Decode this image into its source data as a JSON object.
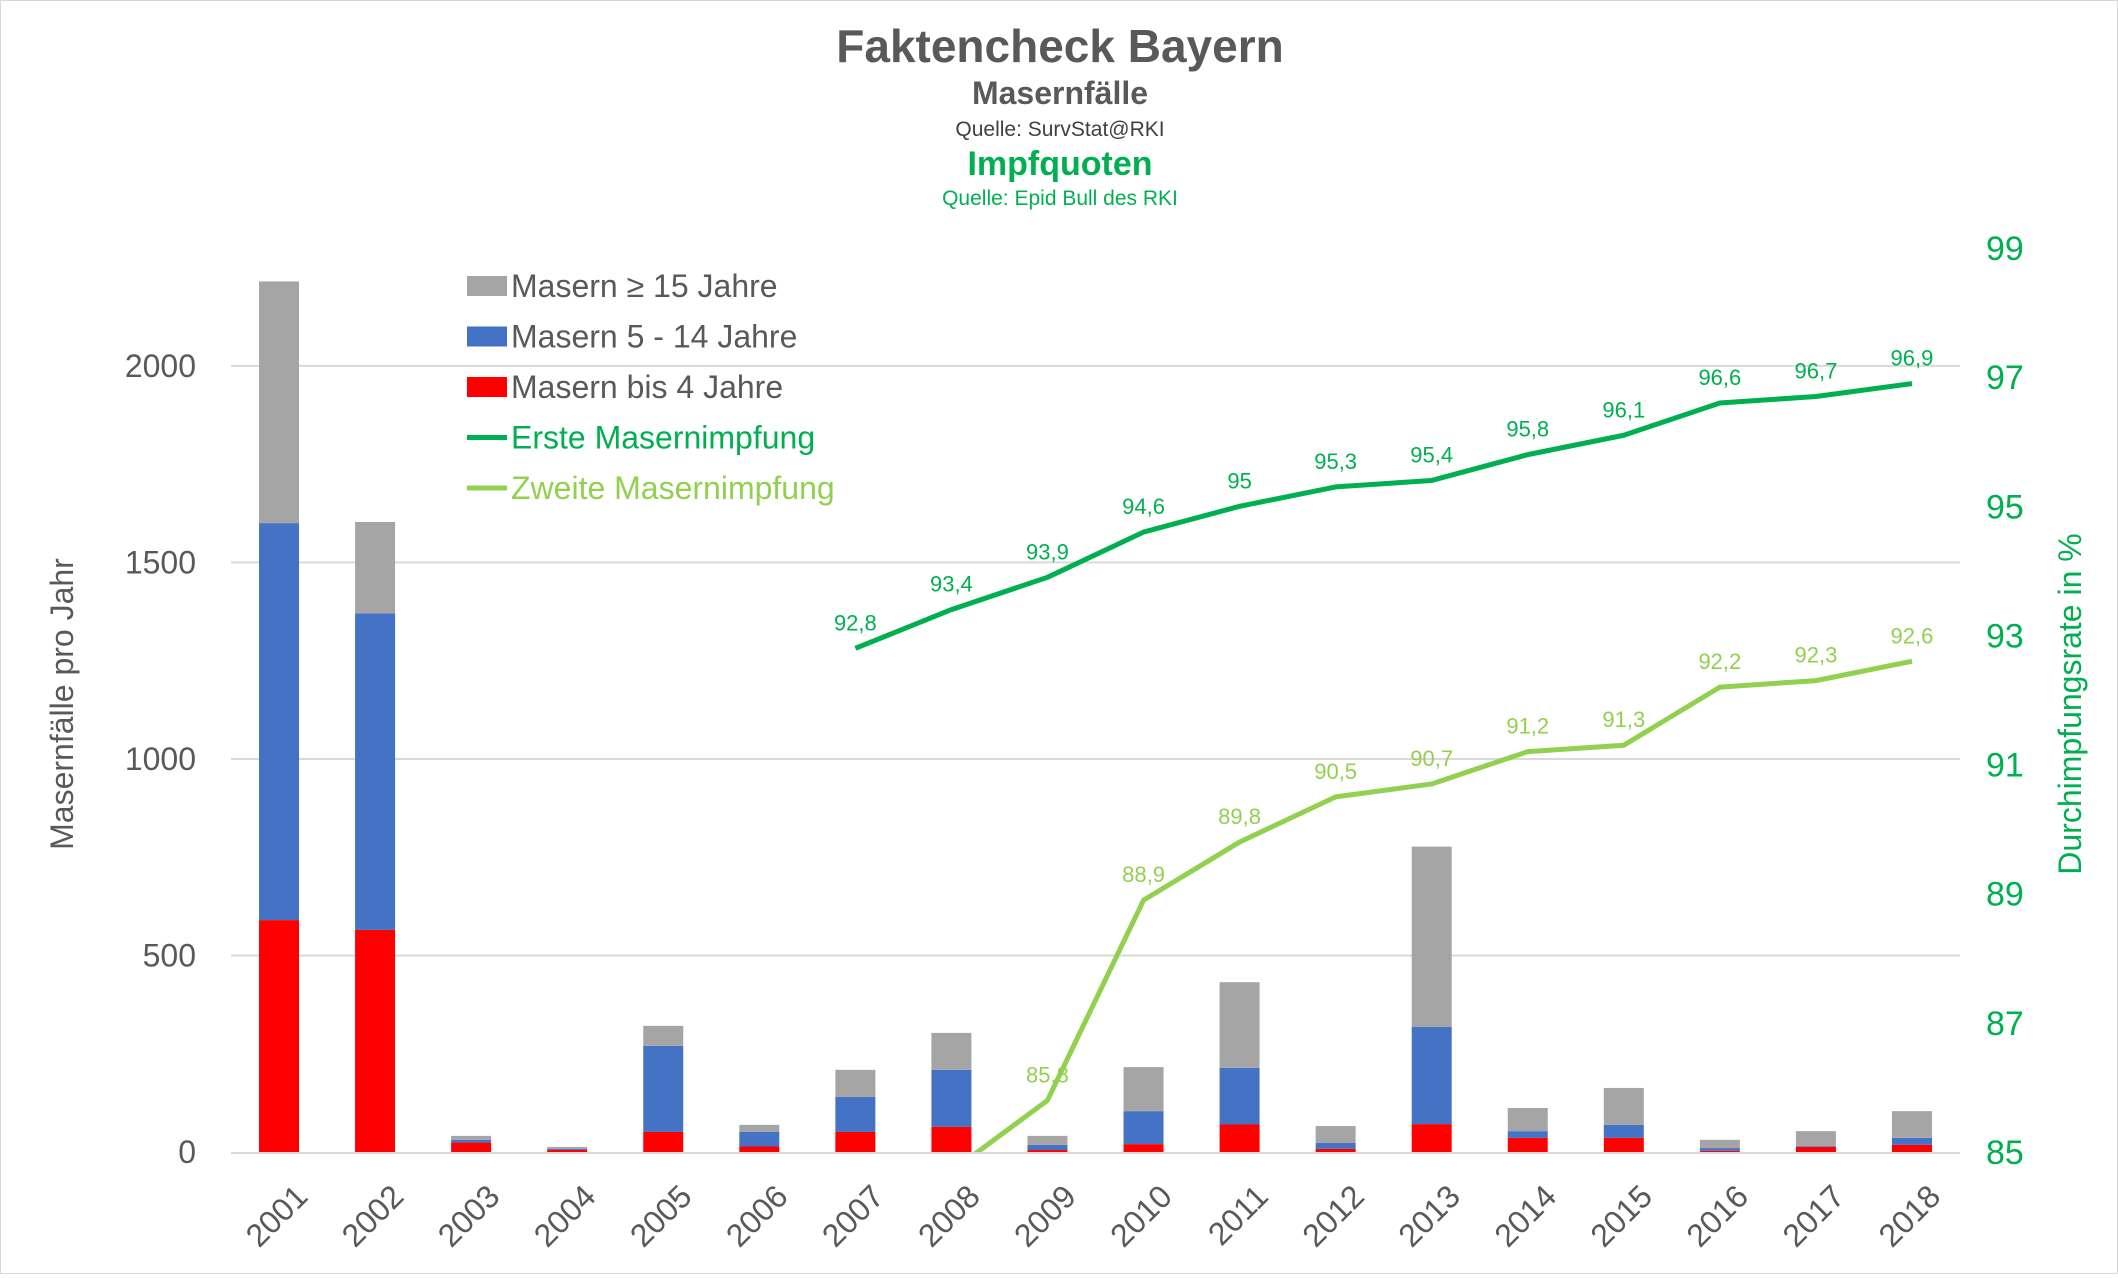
{
  "chart_data": {
    "type": "bar",
    "title": "Faktencheck Bayern",
    "subtitle1": "Masernfälle",
    "source1": "Quelle: SurvStat@RKI",
    "subtitle2": "Impfquoten",
    "source2": "Quelle: Epid Bull des RKI",
    "ylabel": "Masernfälle pro Jahr",
    "y2label": "Durchimpfungsrate in %",
    "ylim": [
      0,
      2300
    ],
    "yticks": [
      0,
      500,
      1000,
      1500,
      2000
    ],
    "y2lim": [
      85,
      99
    ],
    "y2ticks": [
      85,
      87,
      89,
      91,
      93,
      95,
      97,
      99
    ],
    "grid": true,
    "legend_position": "top-left",
    "categories": [
      "2001",
      "2002",
      "2003",
      "2004",
      "2005",
      "2006",
      "2007",
      "2008",
      "2009",
      "2010",
      "2011",
      "2012",
      "2013",
      "2014",
      "2015",
      "2016",
      "2017",
      "2018"
    ],
    "bar_series": [
      {
        "name": "Masern bis 4 Jahre",
        "color": "#FF0000",
        "values": [
          590,
          565,
          24,
          5,
          51,
          14,
          51,
          64,
          5,
          20,
          70,
          8,
          71,
          36,
          36,
          3,
          13,
          18
        ]
      },
      {
        "name": "Masern 5 - 14 Jahre",
        "color": "#4472C4",
        "values": [
          1010,
          805,
          7,
          3,
          219,
          37,
          89,
          145,
          13,
          84,
          144,
          15,
          247,
          17,
          33,
          7,
          2,
          18
        ]
      },
      {
        "name": "Masern ≥ 15 Jahre",
        "color": "#A5A5A5",
        "values": [
          615,
          233,
          10,
          5,
          51,
          18,
          69,
          94,
          23,
          112,
          218,
          43,
          459,
          59,
          94,
          21,
          38,
          68
        ]
      }
    ],
    "line_series": [
      {
        "name": "Erste Masernimpfung",
        "color": "#00B050",
        "values": [
          null,
          null,
          null,
          null,
          null,
          null,
          92.8,
          93.4,
          93.9,
          94.6,
          95,
          95.3,
          95.4,
          95.8,
          96.1,
          96.6,
          96.7,
          96.9
        ],
        "labels": [
          null,
          null,
          null,
          null,
          null,
          null,
          "92,8",
          "93,4",
          "93,9",
          "94,6",
          "95",
          "95,3",
          "95,4",
          "95,8",
          "96,1",
          "96,6",
          "96,7",
          "96,9"
        ]
      },
      {
        "name": "Zweite Masernimpfung",
        "color": "#92D050",
        "values": [
          null,
          null,
          null,
          null,
          null,
          null,
          null,
          84.7,
          85.8,
          88.9,
          89.8,
          90.5,
          90.7,
          91.2,
          91.3,
          92.2,
          92.3,
          92.6
        ],
        "labels": [
          null,
          null,
          null,
          null,
          null,
          null,
          null,
          null,
          "85,8",
          "88,9",
          "89,8",
          "90,5",
          "90,7",
          "91,2",
          "91,3",
          "92,2",
          "92,3",
          "92,6"
        ]
      }
    ],
    "legend": [
      {
        "label": "Masern ≥ 15 Jahre",
        "kind": "box",
        "color": "#A5A5A5"
      },
      {
        "label": "Masern 5 - 14 Jahre",
        "kind": "box",
        "color": "#4472C4"
      },
      {
        "label": "Masern bis 4 Jahre",
        "kind": "box",
        "color": "#FF0000"
      },
      {
        "label": "Erste Masernimpfung",
        "kind": "line",
        "color": "#00B050"
      },
      {
        "label": "Zweite Masernimpfung",
        "kind": "line",
        "color": "#92D050"
      }
    ]
  }
}
